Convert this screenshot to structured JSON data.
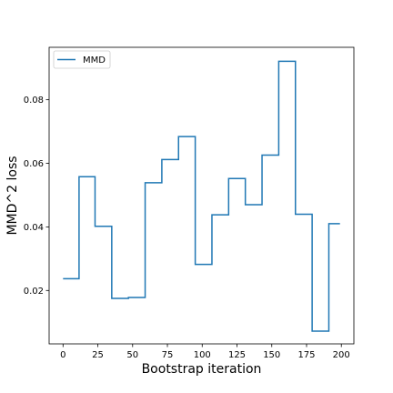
{
  "chart_data": {
    "type": "line",
    "step": true,
    "xlabel": "Bootstrap iteration",
    "ylabel": "MMD^2 loss",
    "xlim": [
      -10,
      209
    ],
    "ylim": [
      0.0032,
      0.0965
    ],
    "xticks": [
      0,
      25,
      50,
      75,
      100,
      125,
      150,
      175,
      200
    ],
    "yticks": [
      0.02,
      0.04,
      0.06,
      0.08
    ],
    "ytick_labels": [
      "0.02",
      "0.04",
      "0.06",
      "0.08"
    ],
    "grid": false,
    "legend": "top-left",
    "series": [
      {
        "name": "MMD",
        "color": "#1f77b4",
        "points": [
          [
            0,
            0.0237
          ],
          [
            11.5,
            0.0237
          ],
          [
            11.5,
            0.0558
          ],
          [
            23,
            0.0558
          ],
          [
            23,
            0.0402
          ],
          [
            35,
            0.0402
          ],
          [
            35,
            0.0175
          ],
          [
            47,
            0.0175
          ],
          [
            47,
            0.0178
          ],
          [
            59,
            0.0178
          ],
          [
            59,
            0.0539
          ],
          [
            71,
            0.0539
          ],
          [
            71,
            0.0612
          ],
          [
            83,
            0.0612
          ],
          [
            83,
            0.0684
          ],
          [
            95,
            0.0684
          ],
          [
            95,
            0.0282
          ],
          [
            107,
            0.0282
          ],
          [
            107,
            0.0438
          ],
          [
            119,
            0.0438
          ],
          [
            119,
            0.0552
          ],
          [
            131,
            0.0552
          ],
          [
            131,
            0.047
          ],
          [
            143,
            0.047
          ],
          [
            143,
            0.0626
          ],
          [
            155,
            0.0626
          ],
          [
            155,
            0.0921
          ],
          [
            167,
            0.0921
          ],
          [
            167,
            0.044
          ],
          [
            179,
            0.044
          ],
          [
            179,
            0.0072
          ],
          [
            191,
            0.0072
          ],
          [
            191,
            0.041
          ],
          [
            199,
            0.041
          ]
        ]
      }
    ]
  }
}
